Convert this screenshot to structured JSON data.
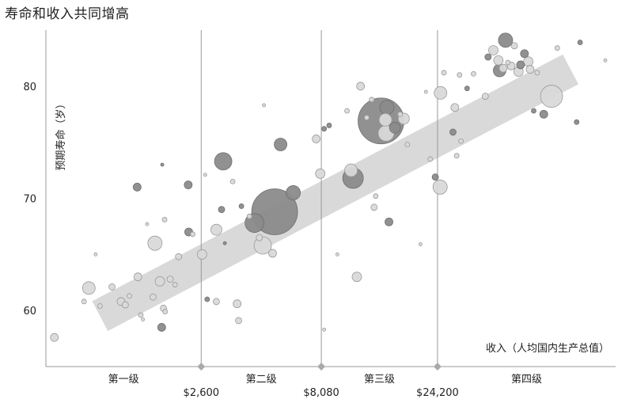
{
  "chart_data": {
    "type": "scatter",
    "title": "寿命和收入共同增高",
    "ylabel": "预期寿命（岁）",
    "xlabel": "收入（人均国内生产总值）",
    "ylim": [
      55,
      85
    ],
    "yticks": [
      60,
      70,
      80
    ],
    "income_thresholds": [
      {
        "label": "$2,600",
        "value": 2600
      },
      {
        "label": "$8,080",
        "value": 8080
      },
      {
        "label": "$24,200",
        "value": 24200
      }
    ],
    "levels": [
      "第一级",
      "第二级",
      "第三级",
      "第四级"
    ],
    "xlim": [
      600,
      130000
    ],
    "x_scale": "log",
    "trend_band": {
      "start": [
        1000,
        59.5
      ],
      "end": [
        85000,
        81.5
      ],
      "half_width_years": 1.5
    },
    "colors": {
      "dark": "#8b8b8b",
      "light": "#d9d9d9",
      "band": "#d9d9d9",
      "axis": "#999999"
    },
    "points": [
      {
        "x": 650,
        "y": 57.6,
        "s": 5,
        "t": "light"
      },
      {
        "x": 860,
        "y": 60.8,
        "s": 3,
        "t": "light"
      },
      {
        "x": 900,
        "y": 62.0,
        "s": 8,
        "t": "light"
      },
      {
        "x": 960,
        "y": 65.0,
        "s": 2,
        "t": "light"
      },
      {
        "x": 1000,
        "y": 60.4,
        "s": 3,
        "t": "light"
      },
      {
        "x": 1120,
        "y": 62.1,
        "s": 4,
        "t": "light"
      },
      {
        "x": 1220,
        "y": 60.8,
        "s": 5,
        "t": "light"
      },
      {
        "x": 1270,
        "y": 60.5,
        "s": 4,
        "t": "light"
      },
      {
        "x": 1320,
        "y": 61.3,
        "s": 3,
        "t": "light"
      },
      {
        "x": 1430,
        "y": 63.0,
        "s": 5,
        "t": "light"
      },
      {
        "x": 1420,
        "y": 71.0,
        "s": 5,
        "t": "dark"
      },
      {
        "x": 1470,
        "y": 59.6,
        "s": 3,
        "t": "light"
      },
      {
        "x": 1500,
        "y": 59.2,
        "s": 2,
        "t": "light"
      },
      {
        "x": 1560,
        "y": 67.7,
        "s": 2,
        "t": "light"
      },
      {
        "x": 1650,
        "y": 61.2,
        "s": 4,
        "t": "light"
      },
      {
        "x": 1680,
        "y": 66.0,
        "s": 9,
        "t": "light"
      },
      {
        "x": 1760,
        "y": 62.6,
        "s": 6,
        "t": "light"
      },
      {
        "x": 1790,
        "y": 58.5,
        "s": 5,
        "t": "dark"
      },
      {
        "x": 1800,
        "y": 73.0,
        "s": 2,
        "t": "dark"
      },
      {
        "x": 1820,
        "y": 60.2,
        "s": 4,
        "t": "light"
      },
      {
        "x": 1850,
        "y": 59.9,
        "s": 3,
        "t": "light"
      },
      {
        "x": 1840,
        "y": 68.1,
        "s": 3,
        "t": "light"
      },
      {
        "x": 1940,
        "y": 62.8,
        "s": 4,
        "t": "light"
      },
      {
        "x": 2030,
        "y": 62.3,
        "s": 3,
        "t": "light"
      },
      {
        "x": 2100,
        "y": 64.8,
        "s": 4,
        "t": "light"
      },
      {
        "x": 2300,
        "y": 71.2,
        "s": 5,
        "t": "dark"
      },
      {
        "x": 2310,
        "y": 67.0,
        "s": 5,
        "t": "dark"
      },
      {
        "x": 2400,
        "y": 66.8,
        "s": 3,
        "t": "light"
      },
      {
        "x": 2620,
        "y": 65.0,
        "s": 6,
        "t": "light"
      },
      {
        "x": 2700,
        "y": 72.1,
        "s": 2,
        "t": "light"
      },
      {
        "x": 2750,
        "y": 61.0,
        "s": 3,
        "t": "dark"
      },
      {
        "x": 3000,
        "y": 60.8,
        "s": 4,
        "t": "light"
      },
      {
        "x": 3000,
        "y": 67.2,
        "s": 7,
        "t": "light"
      },
      {
        "x": 3200,
        "y": 73.3,
        "s": 11,
        "t": "dark"
      },
      {
        "x": 3150,
        "y": 69.0,
        "s": 4,
        "t": "dark"
      },
      {
        "x": 3250,
        "y": 66.0,
        "s": 2,
        "t": "dark"
      },
      {
        "x": 3500,
        "y": 71.5,
        "s": 3,
        "t": "light"
      },
      {
        "x": 3650,
        "y": 60.6,
        "s": 5,
        "t": "light"
      },
      {
        "x": 3700,
        "y": 59.1,
        "s": 4,
        "t": "light"
      },
      {
        "x": 3800,
        "y": 69.3,
        "s": 3,
        "t": "dark"
      },
      {
        "x": 4300,
        "y": 67.8,
        "s": 12,
        "t": "dark"
      },
      {
        "x": 4100,
        "y": 68.4,
        "s": 3,
        "t": "light"
      },
      {
        "x": 4500,
        "y": 66.5,
        "s": 4,
        "t": "light"
      },
      {
        "x": 4700,
        "y": 78.3,
        "s": 2,
        "t": "light"
      },
      {
        "x": 4650,
        "y": 65.8,
        "s": 11,
        "t": "light"
      },
      {
        "x": 5100,
        "y": 65.1,
        "s": 5,
        "t": "light"
      },
      {
        "x": 5200,
        "y": 68.8,
        "s": 29,
        "t": "dark"
      },
      {
        "x": 5500,
        "y": 74.8,
        "s": 8,
        "t": "dark"
      },
      {
        "x": 6200,
        "y": 70.5,
        "s": 9,
        "t": "dark"
      },
      {
        "x": 7700,
        "y": 75.3,
        "s": 5,
        "t": "light"
      },
      {
        "x": 8000,
        "y": 72.2,
        "s": 6,
        "t": "light"
      },
      {
        "x": 8300,
        "y": 76.2,
        "s": 3,
        "t": "dark"
      },
      {
        "x": 8700,
        "y": 76.5,
        "s": 3,
        "t": "dark"
      },
      {
        "x": 8300,
        "y": 58.3,
        "s": 2,
        "t": "light"
      },
      {
        "x": 9400,
        "y": 65.0,
        "s": 2,
        "t": "light"
      },
      {
        "x": 10300,
        "y": 77.8,
        "s": 3,
        "t": "light"
      },
      {
        "x": 10700,
        "y": 72.5,
        "s": 8,
        "t": "light"
      },
      {
        "x": 10900,
        "y": 71.8,
        "s": 13,
        "t": "dark"
      },
      {
        "x": 11300,
        "y": 63.0,
        "s": 6,
        "t": "light"
      },
      {
        "x": 11700,
        "y": 80.0,
        "s": 5,
        "t": "light"
      },
      {
        "x": 12400,
        "y": 77.2,
        "s": 3,
        "t": "light"
      },
      {
        "x": 13000,
        "y": 78.8,
        "s": 3,
        "t": "light"
      },
      {
        "x": 13300,
        "y": 69.2,
        "s": 4,
        "t": "light"
      },
      {
        "x": 13500,
        "y": 70.2,
        "s": 3,
        "t": "light"
      },
      {
        "x": 14200,
        "y": 76.9,
        "s": 29,
        "t": "dark"
      },
      {
        "x": 14800,
        "y": 77.0,
        "s": 8,
        "t": "light"
      },
      {
        "x": 15000,
        "y": 78.1,
        "s": 9,
        "t": "dark"
      },
      {
        "x": 14900,
        "y": 75.8,
        "s": 10,
        "t": "light"
      },
      {
        "x": 15300,
        "y": 67.9,
        "s": 5,
        "t": "dark"
      },
      {
        "x": 16200,
        "y": 76.3,
        "s": 7,
        "t": "dark"
      },
      {
        "x": 17000,
        "y": 77.5,
        "s": 3,
        "t": "light"
      },
      {
        "x": 17600,
        "y": 77.1,
        "s": 7,
        "t": "light"
      },
      {
        "x": 18200,
        "y": 74.8,
        "s": 3,
        "t": "light"
      },
      {
        "x": 20600,
        "y": 65.9,
        "s": 2,
        "t": "light"
      },
      {
        "x": 21700,
        "y": 79.5,
        "s": 2,
        "t": "light"
      },
      {
        "x": 22600,
        "y": 73.5,
        "s": 3,
        "t": "light"
      },
      {
        "x": 23700,
        "y": 71.9,
        "s": 4,
        "t": "dark"
      },
      {
        "x": 24800,
        "y": 71.0,
        "s": 9,
        "t": "light"
      },
      {
        "x": 24900,
        "y": 79.4,
        "s": 8,
        "t": "light"
      },
      {
        "x": 25700,
        "y": 81.2,
        "s": 3,
        "t": "light"
      },
      {
        "x": 28000,
        "y": 75.9,
        "s": 4,
        "t": "dark"
      },
      {
        "x": 28500,
        "y": 78.1,
        "s": 5,
        "t": "light"
      },
      {
        "x": 29000,
        "y": 73.8,
        "s": 3,
        "t": "light"
      },
      {
        "x": 29800,
        "y": 81.0,
        "s": 3,
        "t": "light"
      },
      {
        "x": 30200,
        "y": 75.1,
        "s": 3,
        "t": "light"
      },
      {
        "x": 32000,
        "y": 79.8,
        "s": 3,
        "t": "dark"
      },
      {
        "x": 34000,
        "y": 81.1,
        "s": 3,
        "t": "light"
      },
      {
        "x": 38000,
        "y": 79.1,
        "s": 4,
        "t": "light"
      },
      {
        "x": 39000,
        "y": 82.6,
        "s": 4,
        "t": "dark"
      },
      {
        "x": 41000,
        "y": 83.2,
        "s": 6,
        "t": "light"
      },
      {
        "x": 43000,
        "y": 82.3,
        "s": 6,
        "t": "light"
      },
      {
        "x": 43500,
        "y": 81.4,
        "s": 8,
        "t": "dark"
      },
      {
        "x": 45000,
        "y": 81.6,
        "s": 5,
        "t": "light"
      },
      {
        "x": 46000,
        "y": 84.1,
        "s": 9,
        "t": "dark"
      },
      {
        "x": 47000,
        "y": 82.1,
        "s": 3,
        "t": "light"
      },
      {
        "x": 48500,
        "y": 81.8,
        "s": 5,
        "t": "light"
      },
      {
        "x": 50000,
        "y": 83.6,
        "s": 4,
        "t": "light"
      },
      {
        "x": 52000,
        "y": 81.3,
        "s": 6,
        "t": "light"
      },
      {
        "x": 53000,
        "y": 81.9,
        "s": 5,
        "t": "dark"
      },
      {
        "x": 55000,
        "y": 82.9,
        "s": 5,
        "t": "dark"
      },
      {
        "x": 57000,
        "y": 82.2,
        "s": 6,
        "t": "light"
      },
      {
        "x": 58000,
        "y": 81.5,
        "s": 5,
        "t": "light"
      },
      {
        "x": 60000,
        "y": 77.8,
        "s": 3,
        "t": "dark"
      },
      {
        "x": 62000,
        "y": 81.2,
        "s": 3,
        "t": "light"
      },
      {
        "x": 66000,
        "y": 77.5,
        "s": 5,
        "t": "dark"
      },
      {
        "x": 71000,
        "y": 79.1,
        "s": 14,
        "t": "light"
      },
      {
        "x": 75000,
        "y": 83.4,
        "s": 3,
        "t": "light"
      },
      {
        "x": 90000,
        "y": 76.8,
        "s": 3,
        "t": "dark"
      },
      {
        "x": 93000,
        "y": 83.9,
        "s": 3,
        "t": "dark"
      },
      {
        "x": 118000,
        "y": 82.3,
        "s": 2,
        "t": "light"
      }
    ]
  }
}
